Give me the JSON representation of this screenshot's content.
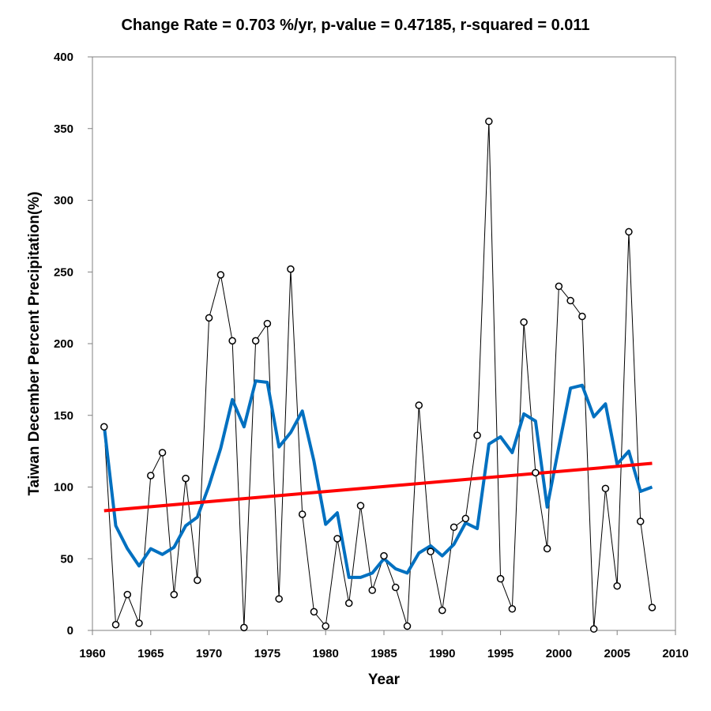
{
  "chart_data": {
    "type": "line",
    "title": "Change Rate =  0.703 %/yr,  p-value =  0.47185,  r-squared =  0.011",
    "xlabel": "Year",
    "ylabel": "Taiwan December Percent Precipitation(%)",
    "xlim": [
      1960,
      2010
    ],
    "ylim": [
      0,
      400
    ],
    "xticks": [
      "1960",
      "1965",
      "1970",
      "1975",
      "1980",
      "1985",
      "1990",
      "1995",
      "2000",
      "2005",
      "2010"
    ],
    "yticks": [
      "0",
      "50",
      "100",
      "150",
      "200",
      "250",
      "300",
      "350",
      "400"
    ],
    "grid": false,
    "legend": "none",
    "x": [
      1961,
      1962,
      1963,
      1964,
      1965,
      1966,
      1967,
      1968,
      1969,
      1970,
      1971,
      1972,
      1973,
      1974,
      1975,
      1976,
      1977,
      1978,
      1979,
      1980,
      1981,
      1982,
      1983,
      1984,
      1985,
      1986,
      1987,
      1988,
      1989,
      1990,
      1991,
      1992,
      1993,
      1994,
      1995,
      1996,
      1997,
      1998,
      1999,
      2000,
      2001,
      2002,
      2003,
      2004,
      2005,
      2006,
      2007,
      2008
    ],
    "series": [
      {
        "style": "observed",
        "color": "#000000",
        "values": [
          142,
          4,
          25,
          5,
          108,
          124,
          25,
          106,
          35,
          218,
          248,
          202,
          2,
          202,
          214,
          22,
          252,
          81,
          13,
          3,
          64,
          19,
          87,
          28,
          52,
          30,
          3,
          157,
          55,
          14,
          72,
          78,
          136,
          355,
          36,
          15,
          215,
          110,
          57,
          240,
          230,
          219,
          1,
          99,
          31,
          278,
          76,
          16
        ]
      },
      {
        "style": "smoothed",
        "color": "#0070C0",
        "values": [
          143,
          73,
          57,
          45,
          57,
          53,
          58,
          73,
          79,
          101,
          127,
          161,
          142,
          174,
          173,
          128,
          138,
          153,
          118,
          74,
          82,
          37,
          37,
          40,
          50,
          43,
          40,
          54,
          59,
          52,
          60,
          75,
          71,
          130,
          135,
          124,
          151,
          146,
          86,
          128,
          169,
          171,
          149,
          158,
          116,
          125,
          97,
          100
        ]
      },
      {
        "style": "trend",
        "color": "#FF0000",
        "x": [
          1961,
          2008
        ],
        "values": [
          83.5,
          116.5
        ]
      }
    ]
  }
}
